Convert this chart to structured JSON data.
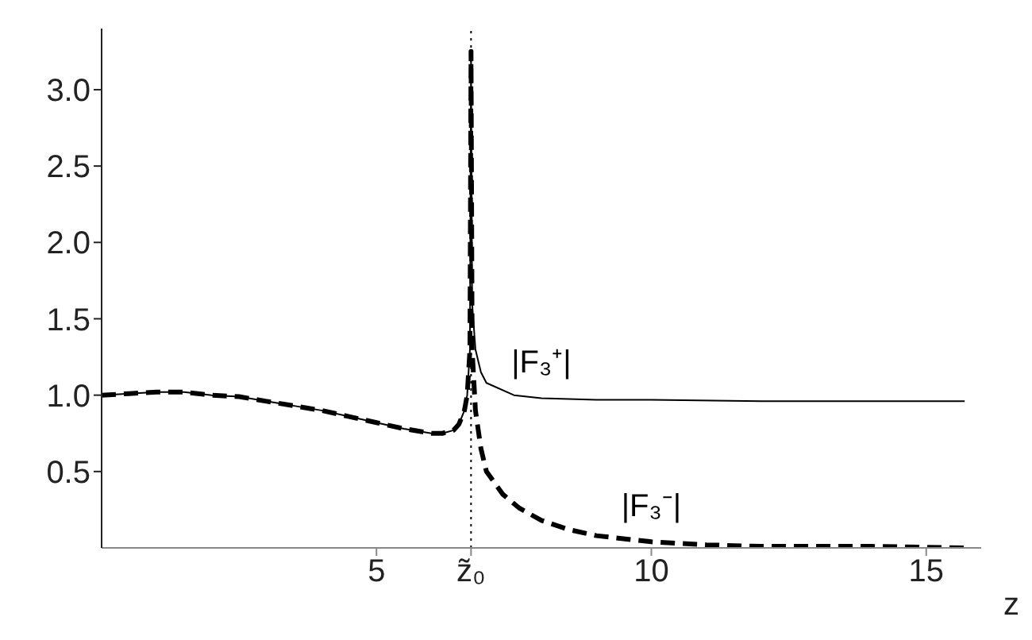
{
  "chart_data": {
    "type": "line",
    "xlabel": "z",
    "xlim": [
      0,
      16
    ],
    "xticks": [
      5,
      {
        "value": 6.72,
        "label": "z̃₀"
      },
      10,
      15
    ],
    "ylim": [
      0,
      3.4
    ],
    "yticks": [
      0.5,
      {
        "value": 1,
        "label": "1.0"
      },
      1.5,
      {
        "value": 2,
        "label": "2.0"
      },
      2.5,
      {
        "value": 3,
        "label": "3.0"
      }
    ],
    "marker": "none",
    "ref_lines": [
      {
        "axis": "x",
        "value": 6.72,
        "label": null,
        "line_style": "dotted",
        "color": "#000000"
      }
    ],
    "series": [
      {
        "name": "|F₃⁺|",
        "color": "#000000",
        "line_style": "solid",
        "x": [
          0,
          0.5,
          1,
          1.5,
          2,
          2.5,
          3,
          3.5,
          4,
          4.5,
          5,
          5.5,
          6,
          6.2,
          6.4,
          6.5,
          6.6,
          6.65,
          6.7,
          6.72,
          6.74,
          6.8,
          6.9,
          7,
          7.5,
          8,
          9,
          10,
          12,
          15.7
        ],
        "values": [
          1.0,
          1.01,
          1.02,
          1.02,
          1.0,
          0.99,
          0.96,
          0.93,
          0.9,
          0.86,
          0.82,
          0.78,
          0.75,
          0.75,
          0.77,
          0.81,
          0.9,
          1.0,
          1.3,
          3.25,
          1.6,
          1.3,
          1.15,
          1.08,
          1.0,
          0.98,
          0.97,
          0.97,
          0.96,
          0.96
        ]
      },
      {
        "name": "|F₃⁻|",
        "color": "#000000",
        "line_style": "dashed",
        "x": [
          0,
          0.5,
          1,
          1.5,
          2,
          2.5,
          3,
          3.5,
          4,
          4.5,
          5,
          5.5,
          6,
          6.2,
          6.4,
          6.5,
          6.6,
          6.65,
          6.7,
          6.72,
          6.74,
          6.8,
          6.9,
          7,
          7.3,
          7.6,
          8,
          8.5,
          9,
          10,
          11,
          12,
          14,
          15.7
        ],
        "values": [
          1.0,
          1.01,
          1.02,
          1.02,
          1.0,
          0.99,
          0.96,
          0.93,
          0.9,
          0.86,
          0.82,
          0.78,
          0.75,
          0.75,
          0.77,
          0.81,
          0.9,
          1.0,
          1.3,
          3.25,
          1.3,
          0.9,
          0.65,
          0.5,
          0.35,
          0.26,
          0.18,
          0.12,
          0.08,
          0.04,
          0.02,
          0.01,
          0.01,
          0
        ]
      }
    ]
  }
}
